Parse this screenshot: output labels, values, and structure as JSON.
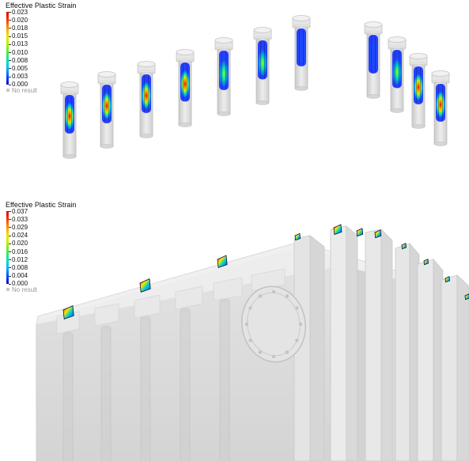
{
  "top_panel": {
    "legend": {
      "title": "Effective Plastic Strain",
      "labels": [
        "0.023",
        "0.020",
        "0.018",
        "0.015",
        "0.013",
        "0.010",
        "0.008",
        "0.005",
        "0.003",
        "0.000"
      ],
      "no_result": "No result"
    }
  },
  "bottom_panel": {
    "legend": {
      "title": "Effective Plastic Strain",
      "labels": [
        "0.037",
        "0.033",
        "0.029",
        "0.024",
        "0.020",
        "0.016",
        "0.012",
        "0.008",
        "0.004",
        "0.000"
      ],
      "no_result": "No result"
    }
  },
  "colors": {
    "colormap": [
      "#1400c8",
      "#0050ff",
      "#00b4ff",
      "#00e6b4",
      "#46f03c",
      "#b4f000",
      "#f0e600",
      "#ff9600",
      "#ff3200",
      "#dc0000"
    ],
    "no_result": "#c8c8c8"
  }
}
